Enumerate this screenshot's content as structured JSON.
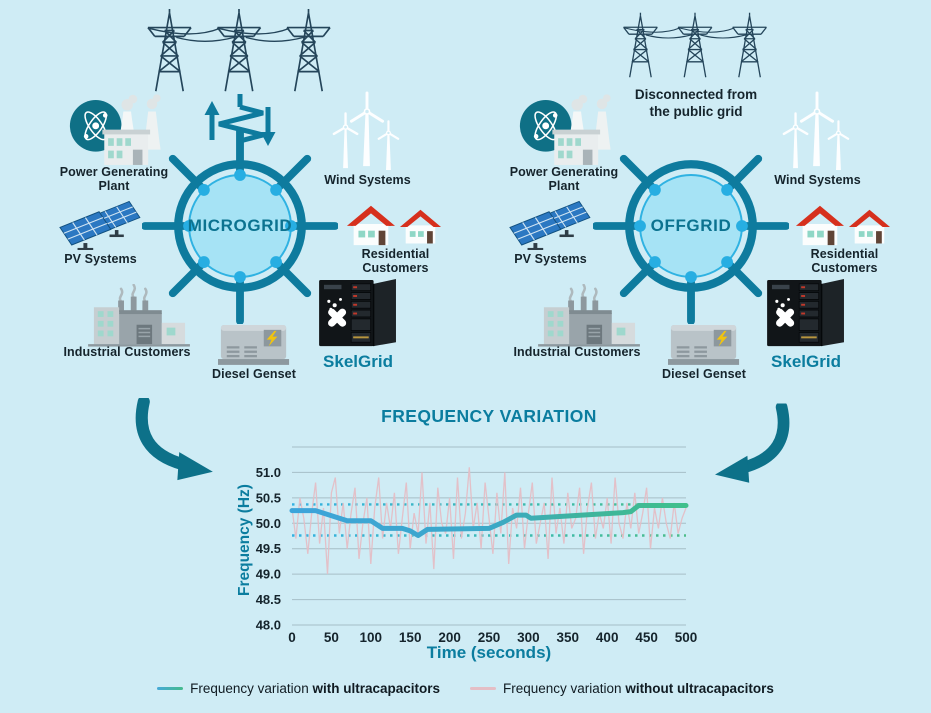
{
  "page": {
    "background": "#cfecf5"
  },
  "colors": {
    "teal": "#0e7b9e",
    "tealDark": "#0d7189",
    "tealText": "#0b7d9f",
    "ink": "#15242c",
    "hubFill": "#a6e3f5",
    "hubStroke": "#2fb2e2",
    "dot": "#27aee2",
    "towers": "#24455a",
    "lineBlue": "#3ca4da",
    "lineGreen": "#3fc08c",
    "withoutPink": "#e4bec5",
    "gridline": "#9fb6c0",
    "dottedStart": "#34b1e2",
    "dottedEnd": "#4dbd8a",
    "roofRed": "#d6301d",
    "windowTeal": "#8fd7c6",
    "boltYellow": "#f1c40f"
  },
  "icons": {
    "transmission-towers": "lattice-pylons-with-cables",
    "grid-connection-zigzag": "zigzag-link-with-up-down-arrows",
    "power-plant": "atom-circle-with-factory-and-cooling-towers",
    "wind-turbines": "three-white-wind-turbines",
    "solar-panels": "two-tilted-pv-panels",
    "houses": "two-red-roof-houses",
    "factory": "grey-industrial-buildings-with-smoke",
    "diesel-genset": "generator-box-with-lightning-bolt",
    "skelgrid-cabinet": "black-rack-cabinet-with-skeleton-x-logo",
    "curved-arrow": "thick-teal-curved-arrow"
  },
  "diagrams": [
    {
      "id": "microgrid",
      "hub_label": "MICROGRID",
      "grid_connected": true,
      "power_plant_label": "Power Generating Plant",
      "wind_label": "Wind Systems",
      "pv_label": "PV Systems",
      "residential_label": "Residential Customers",
      "industrial_label": "Industrial Customers",
      "genset_label": "Diesel Genset",
      "skelgrid_label": "SkelGrid"
    },
    {
      "id": "offgrid",
      "hub_label": "OFFGRID",
      "grid_connected": false,
      "note": "Disconnected from\nthe public grid",
      "power_plant_label": "Power Generating Plant",
      "wind_label": "Wind Systems",
      "pv_label": "PV Systems",
      "residential_label": "Residential Customers",
      "industrial_label": "Industrial Customers",
      "genset_label": "Diesel Genset",
      "skelgrid_label": "SkelGrid"
    }
  ],
  "chart_data": {
    "type": "line",
    "title": "FREQUENCY VARIATION",
    "xlabel": "Time (seconds)",
    "ylabel": "Frequency (Hz)",
    "xlim": [
      0,
      500
    ],
    "ylim": [
      48.0,
      51.5
    ],
    "xticks": [
      0,
      50,
      100,
      150,
      200,
      250,
      300,
      350,
      400,
      450,
      500
    ],
    "yticks": [
      "48.0",
      "48.5",
      "49.0",
      "49.5",
      "50.0",
      "50.5",
      "51.0"
    ],
    "grid_levels": [
      48.0,
      48.5,
      49.0,
      49.5,
      50.0,
      50.5,
      51.0,
      51.5
    ],
    "grid": true,
    "threshold_lines": [
      50.37,
      49.76
    ],
    "series": [
      {
        "name": "Frequency variation with ultracapacitors",
        "style": "thick-gradient-blue-to-green",
        "x": [
          0,
          30,
          70,
          100,
          115,
          140,
          150,
          160,
          172,
          250,
          268,
          285,
          297,
          303,
          420,
          430,
          440,
          500
        ],
        "y": [
          50.25,
          50.25,
          50.05,
          50.05,
          49.9,
          49.9,
          49.85,
          49.76,
          49.88,
          49.9,
          50.02,
          50.16,
          50.16,
          50.1,
          50.21,
          50.23,
          50.35,
          50.35
        ]
      },
      {
        "name": "Frequency variation without ultracapacitors",
        "style": "thin-pink-jagged",
        "x_step": 5,
        "y": [
          50.3,
          49.7,
          50.5,
          50.1,
          49.4,
          50.2,
          50.8,
          49.6,
          50.3,
          49.0,
          50.6,
          50.9,
          49.8,
          50.4,
          49.5,
          50.2,
          50.7,
          49.3,
          50.0,
          50.5,
          49.2,
          50.3,
          50.9,
          49.7,
          50.4,
          49.9,
          50.6,
          49.4,
          50.1,
          50.8,
          49.5,
          50.2,
          49.8,
          51.0,
          49.6,
          50.4,
          49.1,
          50.7,
          50.0,
          49.8,
          50.5,
          49.3,
          50.9,
          49.7,
          50.2,
          51.1,
          49.9,
          50.4,
          49.5,
          50.8,
          50.1,
          49.4,
          50.6,
          49.8,
          51.0,
          49.2,
          50.3,
          49.9,
          50.7,
          49.5,
          50.2,
          50.8,
          49.6,
          50.0,
          50.4,
          49.3,
          50.9,
          49.8,
          50.3,
          49.6,
          50.6,
          49.9,
          50.1,
          50.7,
          49.4,
          50.3,
          50.8,
          49.7,
          50.2,
          49.9,
          50.5,
          49.6,
          50.9,
          50.0,
          49.7,
          50.4,
          49.9,
          50.6,
          49.8,
          50.2,
          50.7,
          49.5,
          50.3,
          49.9,
          50.5,
          50.0,
          49.7,
          50.4,
          49.8,
          50.1,
          50.3
        ]
      }
    ],
    "legend": [
      {
        "prefix": "Frequency variation ",
        "bold": "with ultracapacitors"
      },
      {
        "prefix": "Frequency variation ",
        "bold": "without ultracapacitors"
      }
    ],
    "legend_position": "bottom-center"
  }
}
